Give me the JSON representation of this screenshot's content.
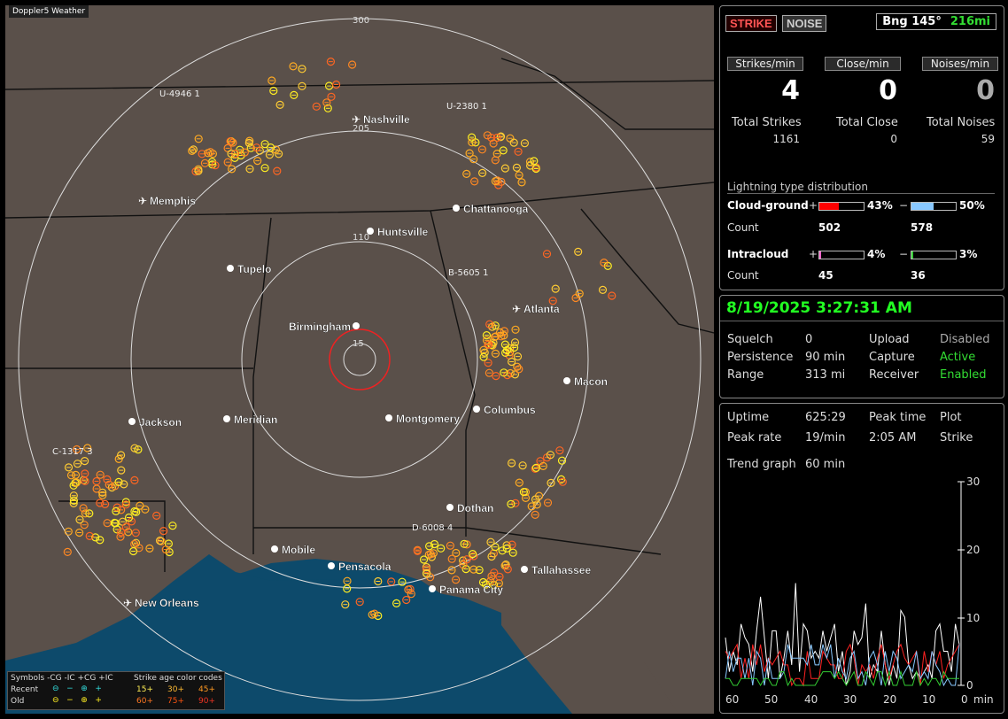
{
  "app": {
    "title": "Doppler5 Weather"
  },
  "tabs": {
    "strike": "STRIKE",
    "noise": "NOISE"
  },
  "bearing": {
    "bng": "Bng 145°",
    "range": "216mi"
  },
  "rates": {
    "strikes_hdr": "Strikes/min",
    "close_hdr": "Close/min",
    "noises_hdr": "Noises/min",
    "strikes": "4",
    "close": "0",
    "noises": "0"
  },
  "totals": {
    "strikes_lbl": "Total Strikes",
    "close_lbl": "Total Close",
    "noises_lbl": "Total Noises",
    "strikes": "1161",
    "close": "0",
    "noises": "59"
  },
  "distribution": {
    "title": "Lightning type distribution",
    "cg_label": "Cloud-ground",
    "ic_label": "Intracloud",
    "count_label": "Count",
    "plus": "+",
    "minus": "−",
    "cg_pos_pct": "43%",
    "cg_neg_pct": "50%",
    "cg_pos_count": "502",
    "cg_neg_count": "578",
    "ic_pos_pct": "4%",
    "ic_neg_pct": "3%",
    "ic_pos_count": "45",
    "ic_neg_count": "36",
    "cg_pos_frac": 0.43,
    "cg_neg_frac": 0.5,
    "ic_pos_frac": 0.04,
    "ic_neg_frac": 0.03,
    "colors": {
      "cg_pos": "#ff0000",
      "cg_neg": "#88c8ff",
      "ic_pos": "#ff66cc",
      "ic_neg": "#33cc33"
    }
  },
  "status": {
    "datetime": "8/19/2025 3:27:31 AM",
    "squelch_lbl": "Squelch",
    "squelch": "0",
    "persistence_lbl": "Persistence",
    "persistence": "90 min",
    "range_lbl": "Range",
    "range": "313 mi",
    "upload_lbl": "Upload",
    "upload": "Disabled",
    "capture_lbl": "Capture",
    "capture": "Active",
    "receiver_lbl": "Receiver",
    "receiver": "Enabled"
  },
  "trend": {
    "uptime_lbl": "Uptime",
    "uptime": "625:29",
    "peak_time_lbl": "Peak time",
    "peak_time": "2:05 AM",
    "plot_lbl": "Plot",
    "plot": "Strike",
    "peak_rate_lbl": "Peak rate",
    "peak_rate": "19/min",
    "graph_lbl": "Trend graph",
    "graph": "60 min",
    "y_ticks": [
      "30",
      "20",
      "10",
      "0"
    ],
    "x_ticks": [
      "60",
      "50",
      "40",
      "30",
      "20",
      "10",
      "0"
    ],
    "x_unit": "min"
  },
  "map": {
    "range_rings": [
      "300",
      "205",
      "110",
      "15"
    ],
    "cities": [
      {
        "name": "Nashville",
        "airport": true
      },
      {
        "name": "Memphis",
        "airport": true
      },
      {
        "name": "Chattanooga",
        "airport": false
      },
      {
        "name": "Huntsville",
        "airport": false
      },
      {
        "name": "Tupelo",
        "airport": false
      },
      {
        "name": "Atlanta",
        "airport": true
      },
      {
        "name": "Birmingham",
        "airport": false
      },
      {
        "name": "Macon",
        "airport": false
      },
      {
        "name": "Jackson",
        "airport": false
      },
      {
        "name": "Meridian",
        "airport": false
      },
      {
        "name": "Montgomery",
        "airport": false
      },
      {
        "name": "Columbus",
        "airport": false
      },
      {
        "name": "Dothan",
        "airport": false
      },
      {
        "name": "Mobile",
        "airport": false
      },
      {
        "name": "Pensacola",
        "airport": false
      },
      {
        "name": "Tallahassee",
        "airport": false
      },
      {
        "name": "Panama City",
        "airport": false
      },
      {
        "name": "New Orleans",
        "airport": true
      }
    ],
    "storm_labels": [
      "U-4946 1",
      "U-2380 1",
      "B-5605 1",
      "C-1317 3",
      "D-6008 4"
    ]
  },
  "legend": {
    "symbols": "Symbols -CG  -IC  +CG  +IC",
    "age": "Strike age color codes",
    "recent": "Recent",
    "old": "Old",
    "r15": "15+",
    "r30": "30+",
    "r45": "45+",
    "o60": "60+",
    "o75": "75+",
    "o90": "90+"
  }
}
